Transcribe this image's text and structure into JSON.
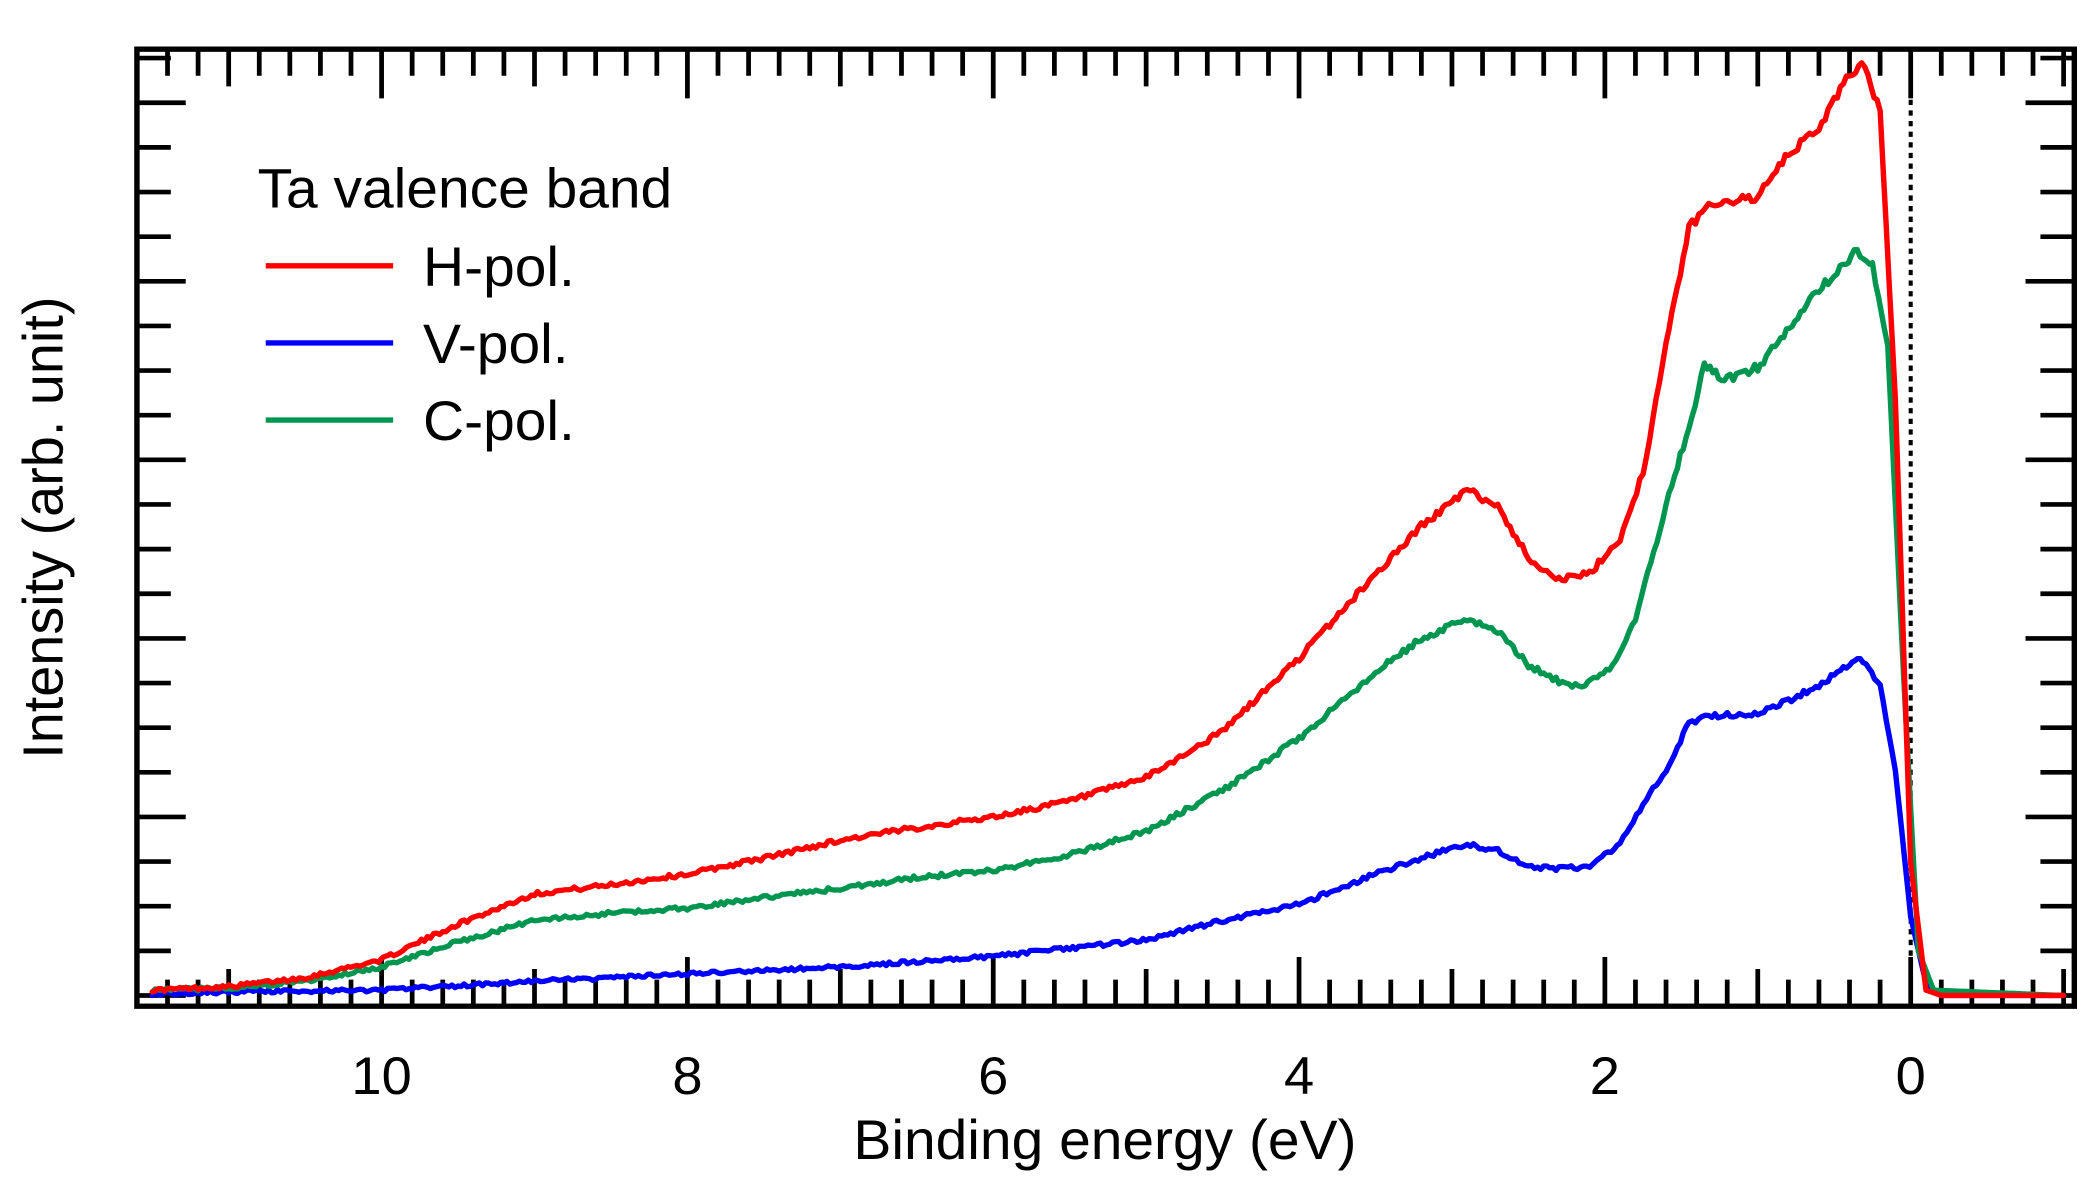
{
  "chart_data": {
    "type": "line",
    "title": "",
    "xlabel": "Binding energy (eV)",
    "ylabel": "Intensity (arb. unit)",
    "xlim": [
      11.6,
      -1.07
    ],
    "ylim": [
      -0.06,
      5.3
    ],
    "x_reversed": true,
    "x_ticks": [
      10,
      8,
      6,
      4,
      2,
      0
    ],
    "x_tick_labels": [
      "10",
      "8",
      "6",
      "4",
      "2",
      "0"
    ],
    "y_tick_labels_shown": false,
    "grid": false,
    "fermi_level_marker": {
      "x": 0,
      "style": "dotted"
    },
    "legend": {
      "title": "Ta valence band",
      "placement": "top-left",
      "entries": [
        {
          "name": "H-pol.",
          "color": "#ff0000"
        },
        {
          "name": "V-pol.",
          "color": "#0000ff"
        },
        {
          "name": "C-pol.",
          "color": "#009650"
        }
      ]
    },
    "series": [
      {
        "name": "H-pol.",
        "color": "#ff0000",
        "x": [
          11.5,
          11.0,
          10.5,
          10.0,
          9.5,
          9.0,
          8.5,
          8.0,
          7.5,
          7.0,
          6.5,
          6.0,
          5.5,
          5.0,
          4.5,
          4.0,
          3.5,
          3.2,
          2.9,
          2.7,
          2.5,
          2.3,
          2.1,
          1.9,
          1.75,
          1.6,
          1.45,
          1.3,
          1.0,
          0.8,
          0.6,
          0.4,
          0.3,
          0.2,
          0.1,
          0.0,
          -0.1,
          -0.2,
          -1.0
        ],
        "values": [
          0.03,
          0.05,
          0.1,
          0.2,
          0.4,
          0.57,
          0.62,
          0.68,
          0.77,
          0.87,
          0.94,
          1.0,
          1.09,
          1.22,
          1.48,
          1.89,
          2.36,
          2.63,
          2.83,
          2.74,
          2.45,
          2.33,
          2.36,
          2.56,
          2.93,
          3.64,
          4.3,
          4.44,
          4.47,
          4.71,
          4.86,
          5.16,
          5.22,
          4.94,
          3.34,
          0.74,
          0.03,
          0.0,
          0.0
        ]
      },
      {
        "name": "V-pol.",
        "color": "#0000ff",
        "x": [
          11.5,
          11.0,
          10.0,
          9.0,
          8.0,
          7.0,
          6.0,
          5.0,
          4.5,
          4.0,
          3.5,
          3.2,
          2.9,
          2.7,
          2.5,
          2.3,
          2.1,
          1.9,
          1.75,
          1.6,
          1.45,
          1.3,
          1.0,
          0.8,
          0.6,
          0.4,
          0.33,
          0.2,
          0.1,
          0.0,
          -0.1,
          -0.2,
          -1.0
        ],
        "values": [
          0.01,
          0.02,
          0.03,
          0.08,
          0.12,
          0.16,
          0.22,
          0.31,
          0.42,
          0.51,
          0.68,
          0.77,
          0.85,
          0.81,
          0.72,
          0.71,
          0.72,
          0.85,
          1.07,
          1.26,
          1.53,
          1.57,
          1.58,
          1.65,
          1.74,
          1.85,
          1.89,
          1.74,
          1.26,
          0.44,
          0.07,
          0.0,
          0.0
        ]
      },
      {
        "name": "C-pol.",
        "color": "#009650",
        "x": [
          11.5,
          11.0,
          10.5,
          10.0,
          9.5,
          9.0,
          8.5,
          8.0,
          7.5,
          7.0,
          6.5,
          6.0,
          5.5,
          5.0,
          4.5,
          4.0,
          3.5,
          3.2,
          2.9,
          2.7,
          2.5,
          2.3,
          2.15,
          1.95,
          1.8,
          1.6,
          1.45,
          1.35,
          1.2,
          1.0,
          0.85,
          0.7,
          0.5,
          0.35,
          0.25,
          0.15,
          0.05,
          -0.05,
          -0.15,
          -1.0
        ],
        "values": [
          0.03,
          0.04,
          0.08,
          0.16,
          0.3,
          0.42,
          0.46,
          0.49,
          0.55,
          0.6,
          0.66,
          0.7,
          0.79,
          0.92,
          1.15,
          1.44,
          1.81,
          2.0,
          2.11,
          2.04,
          1.85,
          1.76,
          1.72,
          1.85,
          2.11,
          2.74,
          3.19,
          3.52,
          3.45,
          3.52,
          3.67,
          3.86,
          4.04,
          4.17,
          4.08,
          3.64,
          1.85,
          0.25,
          0.03,
          0.0
        ]
      }
    ]
  }
}
